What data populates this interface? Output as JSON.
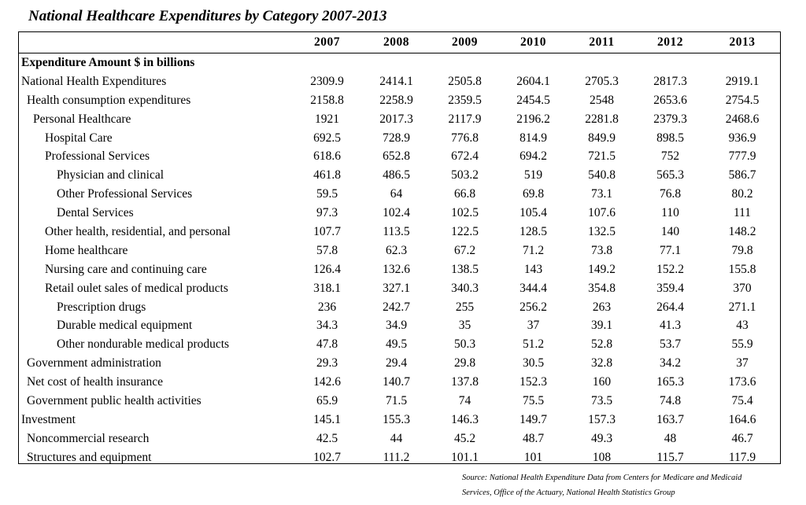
{
  "title": "National Healthcare Expenditures by Category 2007-2013",
  "table": {
    "years": [
      "2007",
      "2008",
      "2009",
      "2010",
      "2011",
      "2012",
      "2013"
    ],
    "section_header": "Expenditure Amount $ in billions",
    "rows": [
      {
        "label": "National Health Expenditures",
        "level": 0,
        "values": [
          "2309.9",
          "2414.1",
          "2505.8",
          "2604.1",
          "2705.3",
          "2817.3",
          "2919.1"
        ]
      },
      {
        "label": "Health consumption expenditures",
        "level": 1,
        "values": [
          "2158.8",
          "2258.9",
          "2359.5",
          "2454.5",
          "2548",
          "2653.6",
          "2754.5"
        ]
      },
      {
        "label": "Personal Healthcare",
        "level": 2,
        "values": [
          "1921",
          "2017.3",
          "2117.9",
          "2196.2",
          "2281.8",
          "2379.3",
          "2468.6"
        ]
      },
      {
        "label": "Hospital Care",
        "level": 3,
        "values": [
          "692.5",
          "728.9",
          "776.8",
          "814.9",
          "849.9",
          "898.5",
          "936.9"
        ]
      },
      {
        "label": "Professional Services",
        "level": 3,
        "values": [
          "618.6",
          "652.8",
          "672.4",
          "694.2",
          "721.5",
          "752",
          "777.9"
        ]
      },
      {
        "label": "Physician and clinical",
        "level": 4,
        "values": [
          "461.8",
          "486.5",
          "503.2",
          "519",
          "540.8",
          "565.3",
          "586.7"
        ]
      },
      {
        "label": "Other Professional Services",
        "level": 4,
        "values": [
          "59.5",
          "64",
          "66.8",
          "69.8",
          "73.1",
          "76.8",
          "80.2"
        ]
      },
      {
        "label": "Dental Services",
        "level": 4,
        "values": [
          "97.3",
          "102.4",
          "102.5",
          "105.4",
          "107.6",
          "110",
          "111"
        ]
      },
      {
        "label": "Other health, residential, and personal",
        "level": 3,
        "values": [
          "107.7",
          "113.5",
          "122.5",
          "128.5",
          "132.5",
          "140",
          "148.2"
        ]
      },
      {
        "label": "Home healthcare",
        "level": 3,
        "values": [
          "57.8",
          "62.3",
          "67.2",
          "71.2",
          "73.8",
          "77.1",
          "79.8"
        ]
      },
      {
        "label": "Nursing care and continuing care",
        "level": 3,
        "values": [
          "126.4",
          "132.6",
          "138.5",
          "143",
          "149.2",
          "152.2",
          "155.8"
        ]
      },
      {
        "label": "Retail oulet sales of medical products",
        "level": 3,
        "values": [
          "318.1",
          "327.1",
          "340.3",
          "344.4",
          "354.8",
          "359.4",
          "370"
        ]
      },
      {
        "label": "Prescription drugs",
        "level": 4,
        "values": [
          "236",
          "242.7",
          "255",
          "256.2",
          "263",
          "264.4",
          "271.1"
        ]
      },
      {
        "label": "Durable medical equipment",
        "level": 4,
        "values": [
          "34.3",
          "34.9",
          "35",
          "37",
          "39.1",
          "41.3",
          "43"
        ]
      },
      {
        "label": "Other nondurable medical products",
        "level": 4,
        "values": [
          "47.8",
          "49.5",
          "50.3",
          "51.2",
          "52.8",
          "53.7",
          "55.9"
        ]
      },
      {
        "label": "Government administration",
        "level": 1,
        "values": [
          "29.3",
          "29.4",
          "29.8",
          "30.5",
          "32.8",
          "34.2",
          "37"
        ]
      },
      {
        "label": "Net cost of health insurance",
        "level": 1,
        "values": [
          "142.6",
          "140.7",
          "137.8",
          "152.3",
          "160",
          "165.3",
          "173.6"
        ]
      },
      {
        "label": "Government public health activities",
        "level": 1,
        "values": [
          "65.9",
          "71.5",
          "74",
          "75.5",
          "73.5",
          "74.8",
          "75.4"
        ]
      },
      {
        "label": "Investment",
        "level": 0,
        "values": [
          "145.1",
          "155.3",
          "146.3",
          "149.7",
          "157.3",
          "163.7",
          "164.6"
        ]
      },
      {
        "label": "Noncommercial research",
        "level": 1,
        "values": [
          "42.5",
          "44",
          "45.2",
          "48.7",
          "49.3",
          "48",
          "46.7"
        ]
      },
      {
        "label": "Structures and equipment",
        "level": 1,
        "values": [
          "102.7",
          "111.2",
          "101.1",
          "101",
          "108",
          "115.7",
          "117.9"
        ]
      }
    ]
  },
  "source": {
    "line1": "Source: National Health Expenditure Data from Centers for Medicare and Medicaid",
    "line2": "Services, Office of the Actuary, National Health Statistics Group"
  }
}
